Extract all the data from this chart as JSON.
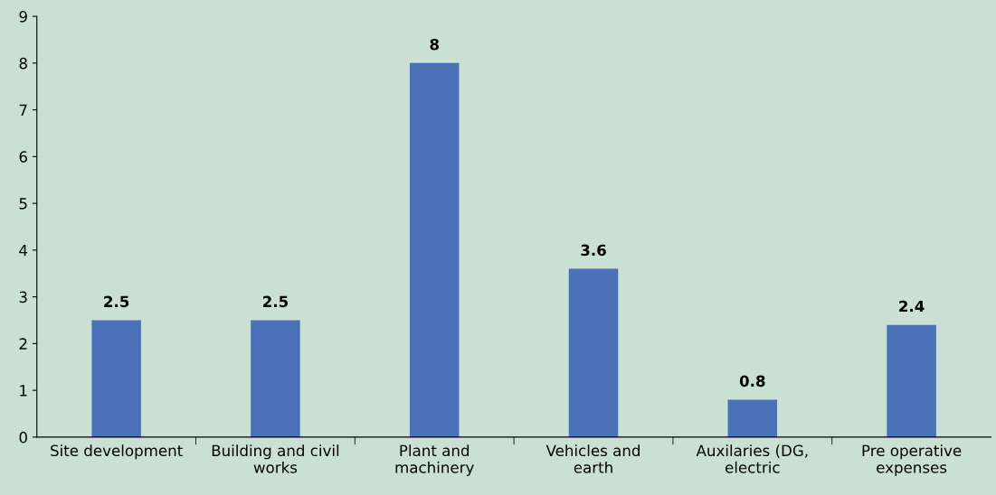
{
  "chart_data": {
    "type": "bar",
    "categories": [
      "Site development",
      "Building and civil\nworks",
      "Plant and\nmachinery",
      "Vehicles and\nearth",
      "Auxilaries (DG,\nelectric",
      "Pre operative\nexpenses"
    ],
    "values": [
      2.5,
      2.5,
      8,
      3.6,
      0.8,
      2.4
    ],
    "color": "#4a70b8",
    "ylim": [
      0,
      9
    ],
    "yticks": [
      0,
      1,
      2,
      3,
      4,
      5,
      6,
      7,
      8,
      9
    ],
    "data_labels": true,
    "grid": false,
    "legend": false
  }
}
